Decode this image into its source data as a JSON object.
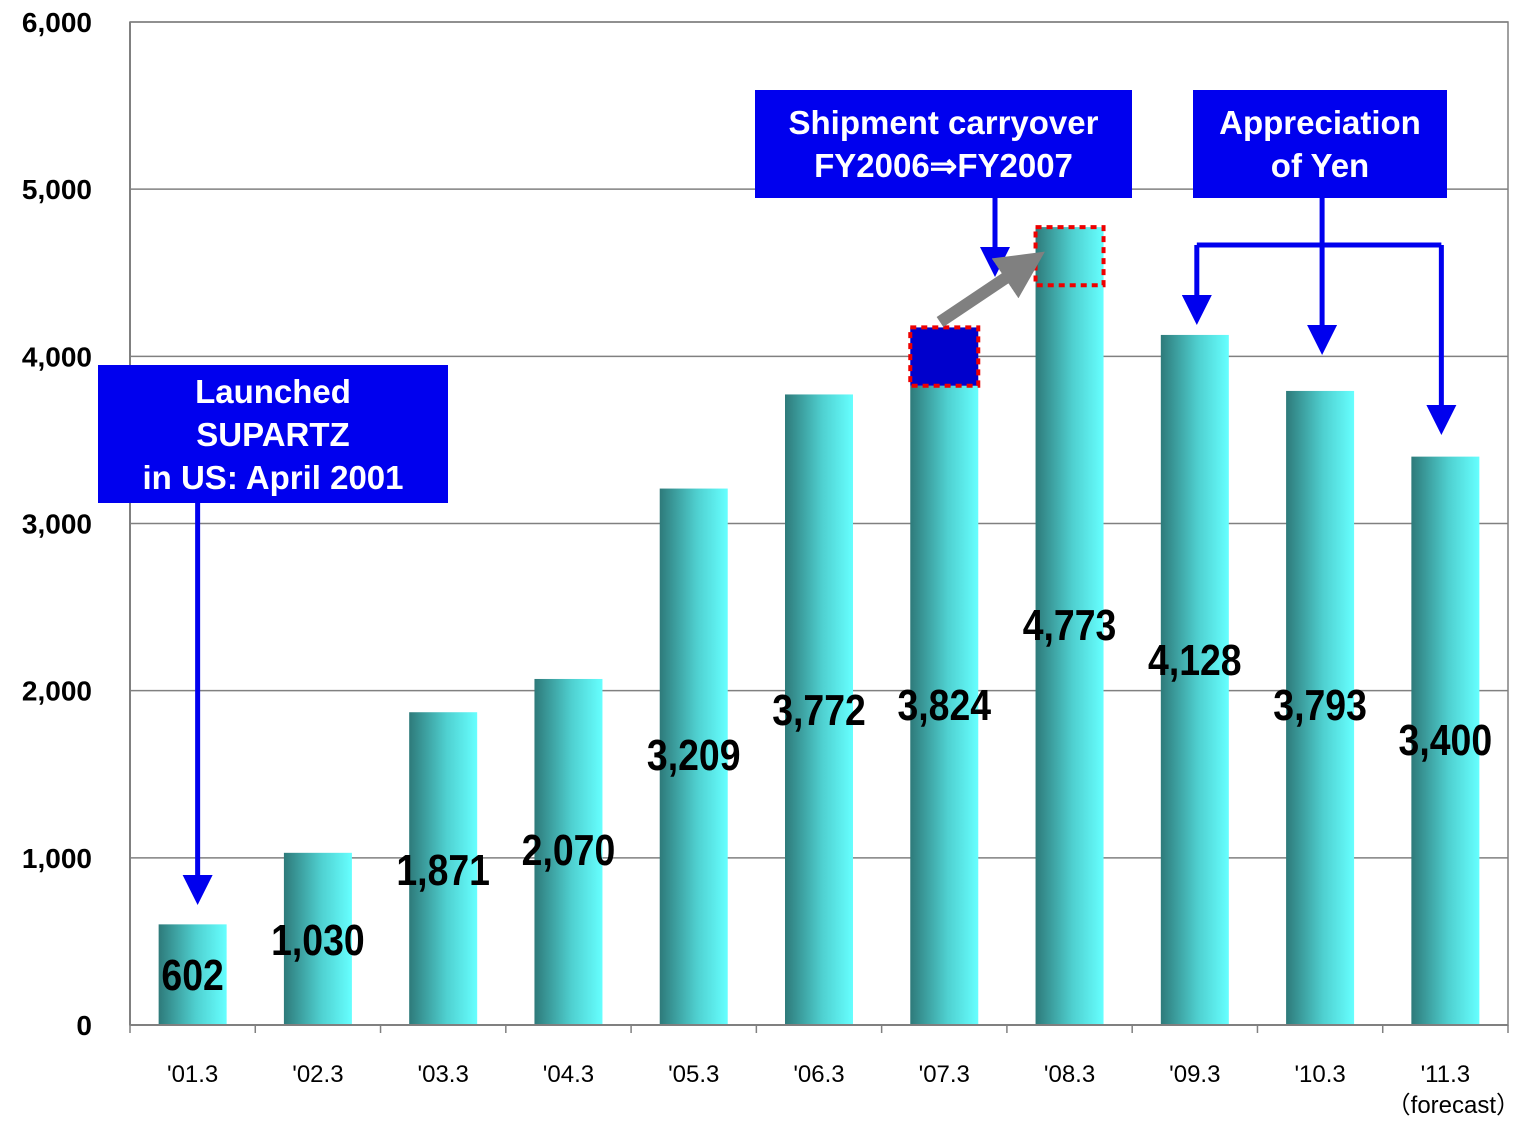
{
  "chart_data": {
    "type": "bar",
    "categories": [
      "'01.3",
      "'02.3",
      "'03.3",
      "'04.3",
      "'05.3",
      "'06.3",
      "'07.3",
      "'08.3",
      "'09.3",
      "'10.3",
      "'11.3"
    ],
    "category_notes": [
      "",
      "",
      "",
      "",
      "",
      "",
      "",
      "",
      "",
      "",
      "（forecast）"
    ],
    "values": [
      602,
      1030,
      1871,
      2070,
      3209,
      3772,
      3824,
      4773,
      4128,
      3793,
      3400
    ],
    "value_labels": [
      "602",
      "1,030",
      "1,871",
      "2,070",
      "3,209",
      "3,772",
      "3,824",
      "4,773",
      "4,128",
      "3,793",
      "3,400"
    ],
    "highlight_segment": {
      "category": "'07.3",
      "from": 3824,
      "to": 4173,
      "color": "#0000cc"
    },
    "carryover_segment": {
      "category": "'08.3",
      "from": 4425,
      "to": 4773
    },
    "ylim": [
      0,
      6000
    ],
    "yticks": [
      0,
      1000,
      2000,
      3000,
      4000,
      5000,
      6000
    ],
    "ytick_labels": [
      "0",
      "1,000",
      "2,000",
      "3,000",
      "4,000",
      "5,000",
      "6,000"
    ],
    "grid": true,
    "title": "",
    "xlabel": "",
    "ylabel": "",
    "colors": {
      "bar_light": "#66ffff",
      "bar_dark": "#2e7a7a",
      "callout": "#0000ee",
      "arrow": "#0000ee",
      "carry_arrow": "#808080",
      "dotted_outline": "#ee0000"
    }
  },
  "annotations": {
    "launched": {
      "lines": [
        "Launched",
        "SUPARTZ",
        "in US: April 2001"
      ]
    },
    "carryover": {
      "lines": [
        "Shipment carryover",
        "FY2006⇒FY2007"
      ]
    },
    "yen": {
      "lines": [
        "Appreciation",
        "of Yen"
      ]
    }
  }
}
